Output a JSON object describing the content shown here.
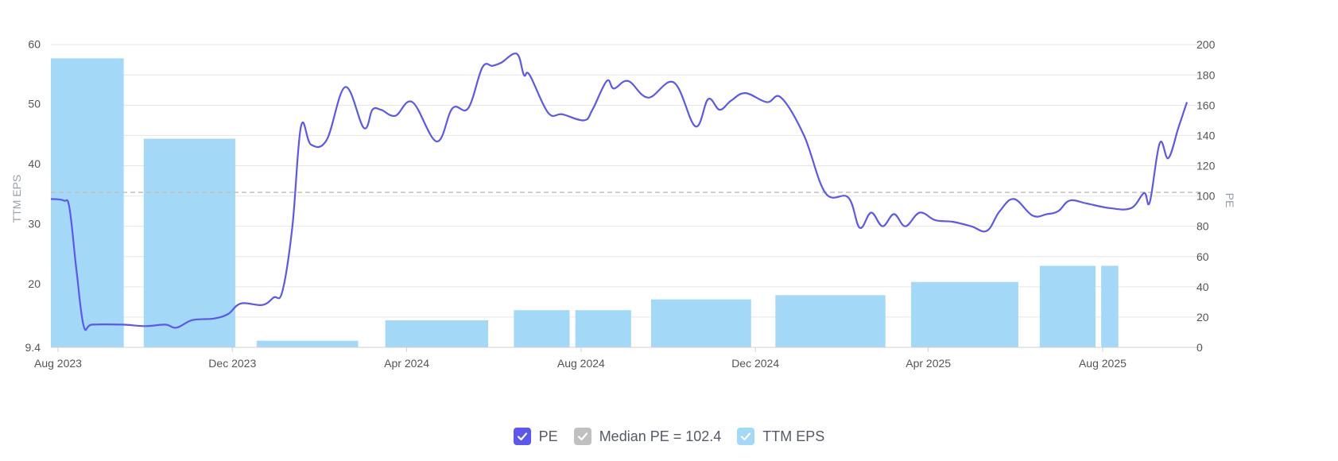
{
  "chart_data": {
    "type": "bar+line",
    "x_ticks": [
      "Aug 2023",
      "Dec 2023",
      "Apr 2024",
      "Aug 2024",
      "Dec 2024",
      "Apr 2025",
      "Aug 2025"
    ],
    "left_axis": {
      "label": "TTM EPS",
      "ticks": [
        "9.4",
        "20",
        "30",
        "40",
        "50",
        "60"
      ],
      "range": [
        9.4,
        61.5
      ]
    },
    "right_axis": {
      "label": "PE",
      "ticks": [
        "0",
        "20",
        "40",
        "60",
        "80",
        "100",
        "120",
        "140",
        "160",
        "180",
        "200"
      ],
      "range": [
        0,
        206.4
      ]
    },
    "colors": {
      "pe": "#5b57f0",
      "eps": "#a3d8f6",
      "median": "#c0c0c0",
      "grid": "#e6e6e6",
      "axis": "#d0d0d0"
    },
    "median_pe": 102.4,
    "eps_bars": [
      {
        "start": "2023-07-27",
        "end": "2023-09-16",
        "value": 57.6
      },
      {
        "start": "2023-09-30",
        "end": "2023-12-03",
        "value": 44.2
      },
      {
        "start": "2023-12-18",
        "end": "2024-02-27",
        "value": 10.5
      },
      {
        "start": "2024-03-17",
        "end": "2024-05-28",
        "value": 13.9
      },
      {
        "start": "2024-06-15",
        "end": "2024-07-24",
        "value": 15.6
      },
      {
        "start": "2024-07-28",
        "end": "2024-09-05",
        "value": 15.6
      },
      {
        "start": "2024-09-19",
        "end": "2024-11-28",
        "value": 17.4
      },
      {
        "start": "2024-12-15",
        "end": "2025-03-02",
        "value": 18.1
      },
      {
        "start": "2025-03-20",
        "end": "2025-06-03",
        "value": 20.3
      },
      {
        "start": "2025-06-18",
        "end": "2025-07-27",
        "value": 23.0
      },
      {
        "start": "2025-07-31",
        "end": "2025-08-12",
        "value": 23.0
      }
    ],
    "pe_series": [
      [
        "2023-07-27",
        98
      ],
      [
        "2023-08-05",
        97
      ],
      [
        "2023-08-09",
        92
      ],
      [
        "2023-08-14",
        50
      ],
      [
        "2023-08-19",
        14
      ],
      [
        "2023-08-25",
        15
      ],
      [
        "2023-09-15",
        15
      ],
      [
        "2023-10-01",
        14
      ],
      [
        "2023-10-15",
        15
      ],
      [
        "2023-10-23",
        13
      ],
      [
        "2023-11-03",
        18
      ],
      [
        "2023-11-18",
        19
      ],
      [
        "2023-11-28",
        22
      ],
      [
        "2023-12-07",
        29
      ],
      [
        "2023-12-22",
        28
      ],
      [
        "2023-12-30",
        33
      ],
      [
        "2024-01-05",
        37
      ],
      [
        "2024-01-12",
        80
      ],
      [
        "2024-01-18",
        146
      ],
      [
        "2024-01-25",
        134
      ],
      [
        "2024-02-05",
        137
      ],
      [
        "2024-02-18",
        172
      ],
      [
        "2024-03-02",
        145
      ],
      [
        "2024-03-08",
        157
      ],
      [
        "2024-03-14",
        157
      ],
      [
        "2024-03-24",
        153
      ],
      [
        "2024-04-05",
        162
      ],
      [
        "2024-04-22",
        136
      ],
      [
        "2024-05-03",
        158
      ],
      [
        "2024-05-14",
        158
      ],
      [
        "2024-05-24",
        185
      ],
      [
        "2024-05-31",
        186
      ],
      [
        "2024-06-06",
        188
      ],
      [
        "2024-06-17",
        194
      ],
      [
        "2024-06-22",
        180
      ],
      [
        "2024-06-26",
        180
      ],
      [
        "2024-07-09",
        155
      ],
      [
        "2024-07-19",
        154
      ],
      [
        "2024-08-03",
        150
      ],
      [
        "2024-08-09",
        157
      ],
      [
        "2024-08-19",
        176
      ],
      [
        "2024-08-24",
        171
      ],
      [
        "2024-09-03",
        176
      ],
      [
        "2024-09-17",
        165
      ],
      [
        "2024-10-05",
        175
      ],
      [
        "2024-10-20",
        146
      ],
      [
        "2024-10-29",
        164
      ],
      [
        "2024-11-06",
        157
      ],
      [
        "2024-11-14",
        163
      ],
      [
        "2024-11-24",
        168
      ],
      [
        "2024-12-09",
        162
      ],
      [
        "2024-12-19",
        165
      ],
      [
        "2025-01-04",
        140
      ],
      [
        "2025-01-19",
        102
      ],
      [
        "2025-02-04",
        99
      ],
      [
        "2025-02-12",
        79
      ],
      [
        "2025-02-20",
        89
      ],
      [
        "2025-02-28",
        80
      ],
      [
        "2025-03-08",
        88
      ],
      [
        "2025-03-16",
        80
      ],
      [
        "2025-03-26",
        89
      ],
      [
        "2025-04-06",
        84
      ],
      [
        "2025-04-18",
        83
      ],
      [
        "2025-05-01",
        80
      ],
      [
        "2025-05-12",
        77
      ],
      [
        "2025-05-21",
        90
      ],
      [
        "2025-05-31",
        98
      ],
      [
        "2025-06-13",
        87
      ],
      [
        "2025-06-23",
        88
      ],
      [
        "2025-07-01",
        90
      ],
      [
        "2025-07-09",
        97
      ],
      [
        "2025-07-21",
        95
      ],
      [
        "2025-08-06",
        92
      ],
      [
        "2025-08-21",
        92
      ],
      [
        "2025-08-30",
        102
      ],
      [
        "2025-09-03",
        96
      ],
      [
        "2025-09-10",
        135
      ],
      [
        "2025-09-16",
        125
      ],
      [
        "2025-09-23",
        145
      ],
      [
        "2025-09-29",
        162
      ]
    ],
    "x_range": [
      "2023-07-27",
      "2025-09-29"
    ],
    "grid": true,
    "legend_position": "bottom-center"
  },
  "legend": [
    {
      "label": "PE"
    },
    {
      "label": "Median PE = 102.4"
    },
    {
      "label": "TTM EPS"
    }
  ]
}
